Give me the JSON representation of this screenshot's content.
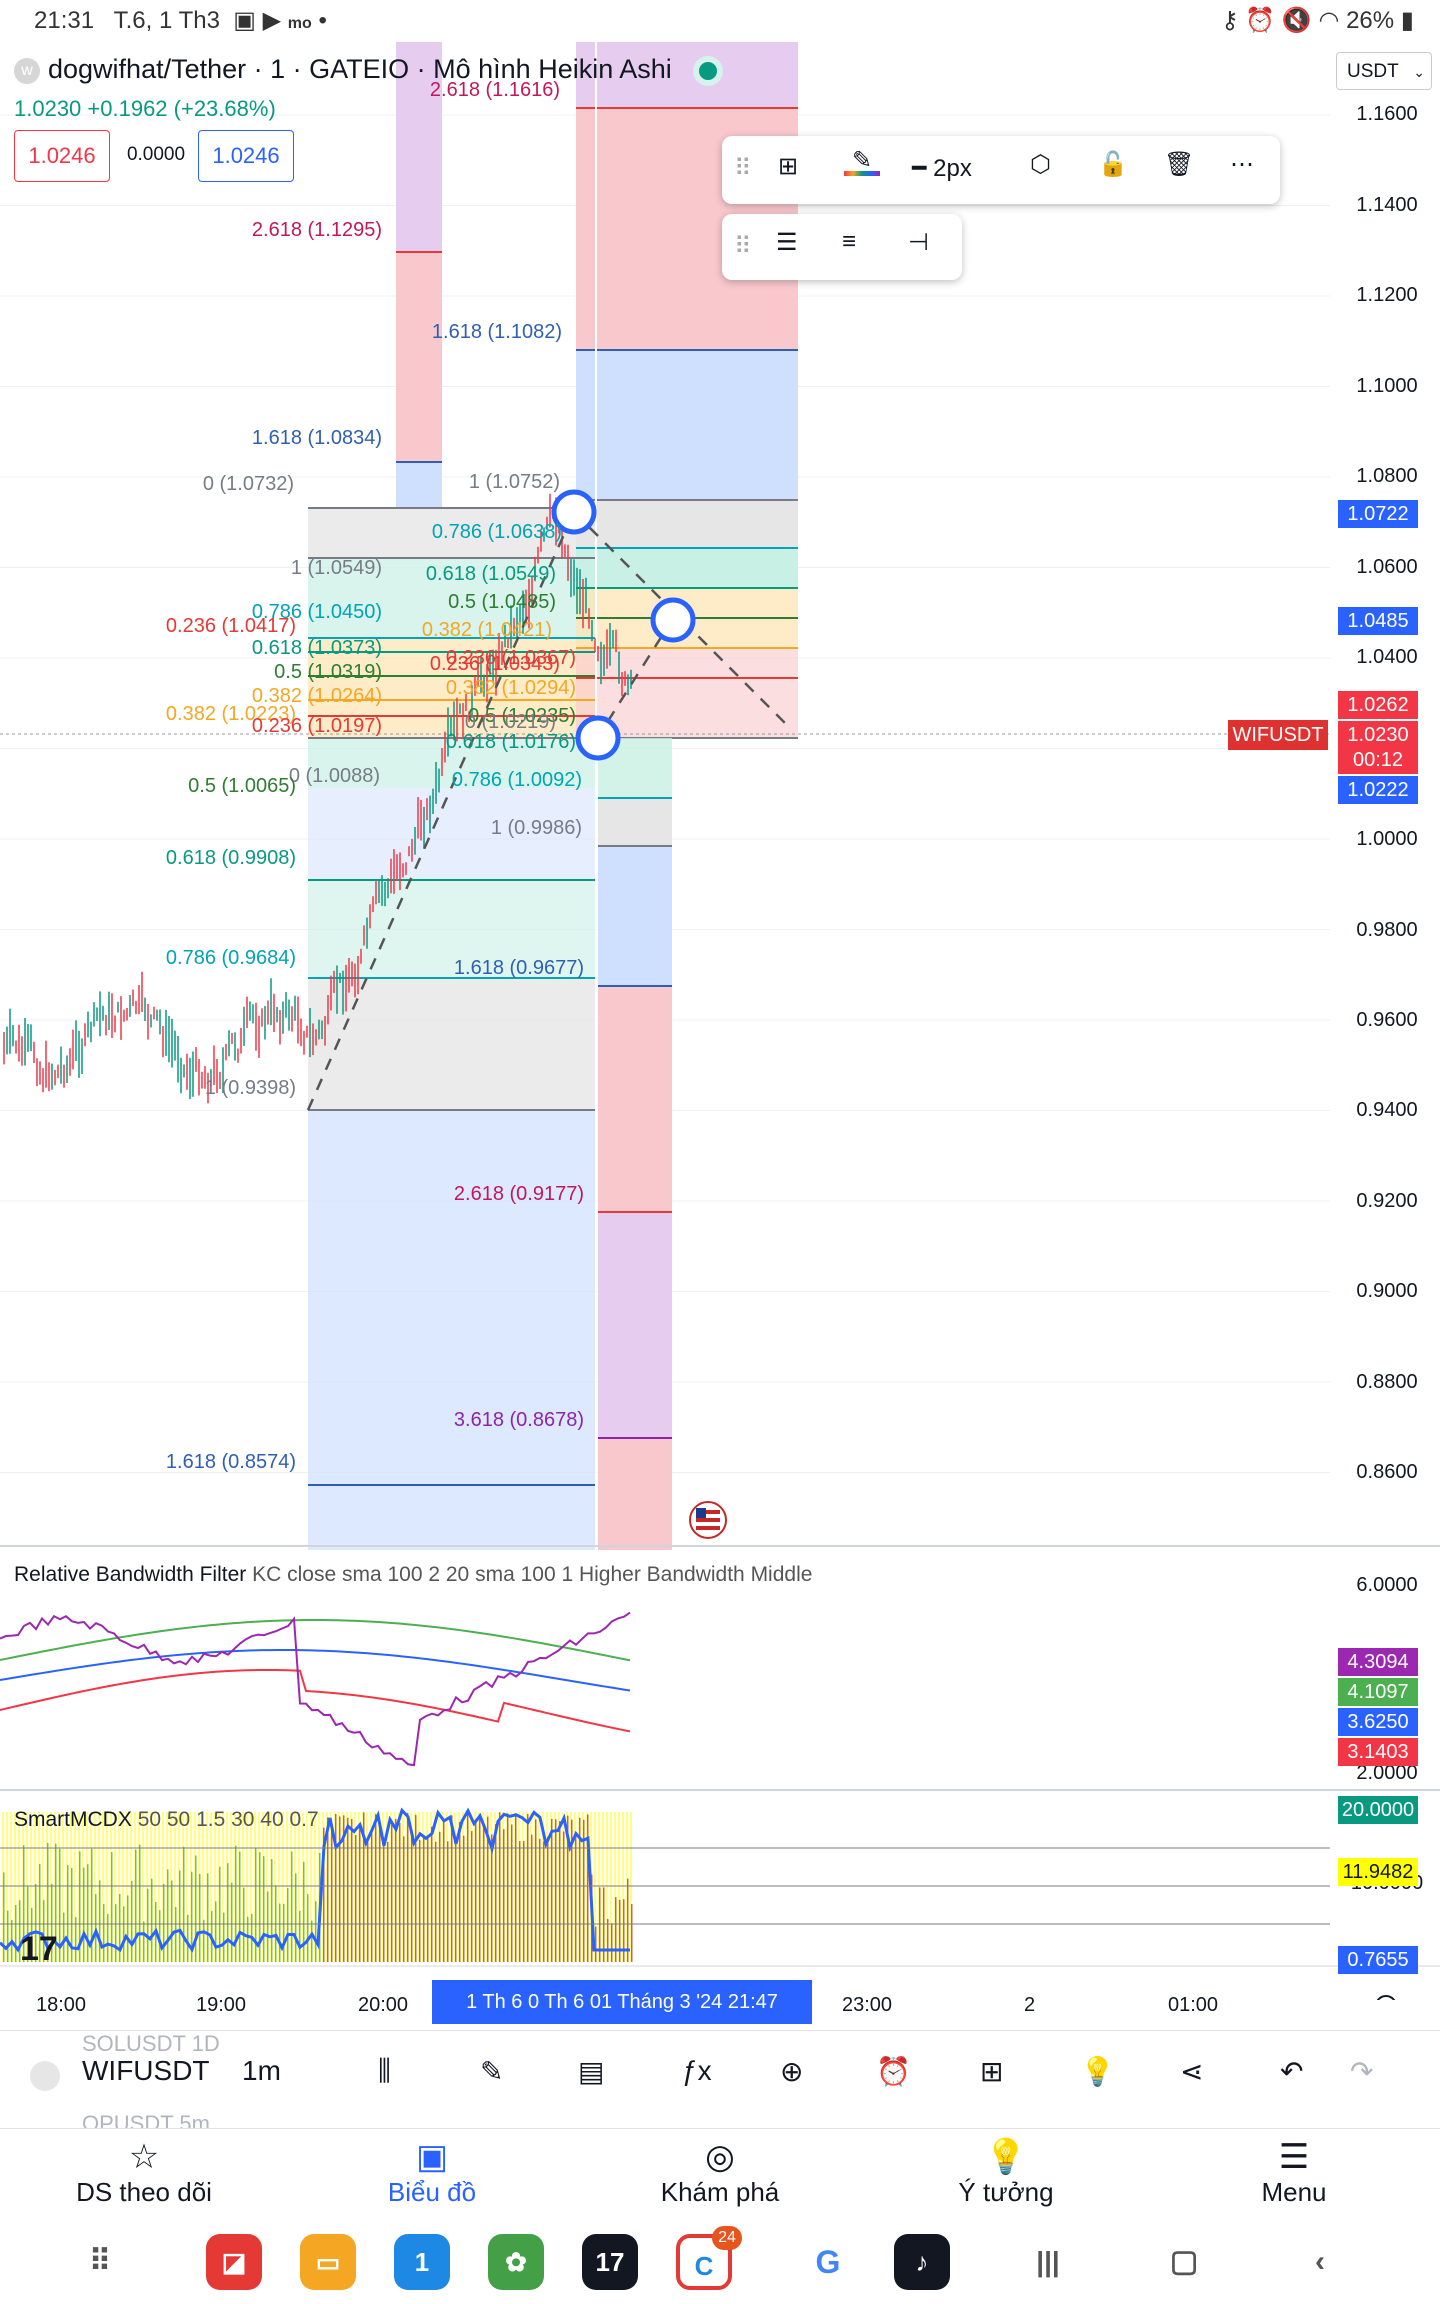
{
  "status_bar": {
    "time": "21:31",
    "date": "T.6, 1 Th3",
    "battery": "26%",
    "icons": [
      "gallery-icon",
      "video-icon",
      "momo-icon",
      "dot-icon",
      "key-icon",
      "alarm-icon",
      "mute-icon",
      "wifi-icon",
      "signal-icon",
      "battery-icon"
    ]
  },
  "header": {
    "symbol_title": "dogwifhat/Tether · 1 · GATEIO · Mô hình Heikin Ashi",
    "price_line": "1.0230 +0.1962 (+23.68%)",
    "bid": "1.0246",
    "spread": "0.0000",
    "ask": "1.0246",
    "currency": "USDT"
  },
  "drawing_toolbar": {
    "stroke_width": "2px",
    "icons": [
      "drag-handle-icon",
      "add-template-icon",
      "pencil-color-icon",
      "line-style-icon",
      "settings-hex-icon",
      "unlock-icon",
      "trash-icon",
      "more-icon"
    ]
  },
  "drawing_toolbar2": {
    "icons": [
      "drag-handle-icon",
      "fib-levels-icon",
      "fib-lines-icon",
      "fib-extension-icon"
    ]
  },
  "colors": {
    "up": "#089981",
    "down": "#f23645",
    "accent": "#2962ff",
    "fib_red": "#f8c8cc",
    "fib_blue": "#cfe0ff",
    "fib_purple": "#e6cdf0",
    "fib_gray": "#e6e6e6",
    "fib_green": "#c8f0e4"
  },
  "price_axis": {
    "ticks": [
      "1.1600",
      "1.1400",
      "1.1200",
      "1.1000",
      "1.0800",
      "1.0600",
      "1.0400",
      "1.0000",
      "0.9800",
      "0.9600",
      "0.9400",
      "0.9200",
      "0.9000",
      "0.8800",
      "0.8600"
    ],
    "badges": [
      {
        "text": "1.0722",
        "color": "#2962ff"
      },
      {
        "text": "1.0485",
        "color": "#2962ff"
      },
      {
        "text": "1.0262",
        "color": "#f23645"
      },
      {
        "text": "1.0230",
        "color": "#f23645"
      },
      {
        "text": "00:12",
        "color": "#f23645"
      },
      {
        "text": "1.0222",
        "color": "#2962ff"
      }
    ],
    "symbol_badge": "WIFUSDT"
  },
  "fib_labels": {
    "left": [
      {
        "text": "2.618 (1.1295)",
        "color": "#c2185b"
      },
      {
        "text": "1.618 (1.0834)",
        "color": "#2f5fb3"
      },
      {
        "text": "0 (1.0732)",
        "color": "#787b86"
      },
      {
        "text": "1 (1.0549)",
        "color": "#787b86"
      },
      {
        "text": "0.786 (1.0450)",
        "color": "#00a4b4"
      },
      {
        "text": "0.236 (1.0417)",
        "color": "#e53935"
      },
      {
        "text": "0.618 (1.0373)",
        "color": "#089981"
      },
      {
        "text": "0.5 (1.0319)",
        "color": "#2e7d32"
      },
      {
        "text": "0.382 (1.0264)",
        "color": "#f5a623"
      },
      {
        "text": "0.382 (1.0223)",
        "color": "#f5a623"
      },
      {
        "text": "0.236 (1.0197)",
        "color": "#e53935"
      },
      {
        "text": "0 (1.0088)",
        "color": "#787b86"
      },
      {
        "text": "0.5 (1.0065)",
        "color": "#2e7d32"
      },
      {
        "text": "0.618 (0.9908)",
        "color": "#089981"
      },
      {
        "text": "0.786 (0.9684)",
        "color": "#00a4b4"
      },
      {
        "text": "1 (0.9398)",
        "color": "#787b86"
      },
      {
        "text": "1.618 (0.8574)",
        "color": "#2f5fb3"
      }
    ],
    "mid": [
      {
        "text": "2.618 (1.1616)",
        "color": "#c2185b"
      },
      {
        "text": "1.618 (1.1082)",
        "color": "#2f5fb3"
      },
      {
        "text": "1 (1.0752)",
        "color": "#787b86"
      },
      {
        "text": "0.786 (1.0638)",
        "color": "#00a4b4"
      },
      {
        "text": "0.618 (1.0549)",
        "color": "#089981"
      },
      {
        "text": "0.5 (1.0485)",
        "color": "#2e7d32"
      },
      {
        "text": "0.382 (1.0421)",
        "color": "#f5a623"
      },
      {
        "text": "0.236 (1.0343)",
        "color": "#e53935"
      },
      {
        "text": "0.236 (1.0367)",
        "color": "#e53935"
      },
      {
        "text": "0.382 (1.0294)",
        "color": "#f5a623"
      },
      {
        "text": "0.5 (1.0235)",
        "color": "#2e7d32"
      },
      {
        "text": "0 (1.0219)",
        "color": "#787b86"
      },
      {
        "text": "0.618 (1.0176)",
        "color": "#089981"
      },
      {
        "text": "0.786 (1.0092)",
        "color": "#00a4b4"
      },
      {
        "text": "1 (0.9986)",
        "color": "#787b86"
      },
      {
        "text": "1.618 (0.9677)",
        "color": "#2f5fb3"
      },
      {
        "text": "2.618 (0.9177)",
        "color": "#c2185b"
      },
      {
        "text": "3.618 (0.8678)",
        "color": "#8e24aa"
      }
    ]
  },
  "indicator1": {
    "name": "Relative Bandwidth Filter",
    "params": "KC close sma 100 2 20 sma 100 1 Higher Bandwidth Middle",
    "axis_top": "6.0000",
    "axis_bottom": "2.0000",
    "badges": [
      {
        "text": "4.3094",
        "color": "#9c27b0"
      },
      {
        "text": "4.1097",
        "color": "#4caf50"
      },
      {
        "text": "3.6250",
        "color": "#2962ff"
      },
      {
        "text": "3.1403",
        "color": "#f23645"
      }
    ]
  },
  "indicator2": {
    "name": "SmartMCDX",
    "params": "50 50 1.5 30 40 0.7",
    "axis_mid": "10.0000",
    "badges": [
      {
        "text": "20.0000",
        "color": "#089981"
      },
      {
        "text": "11.9482",
        "color": "#ffff00"
      },
      {
        "text": "0.7655",
        "color": "#2962ff"
      }
    ]
  },
  "time_axis": {
    "ticks": [
      "18:00",
      "19:00",
      "20:00",
      "23:00",
      "2",
      "01:00"
    ],
    "highlight": "1  Th 6 0   Th 6 01 Tháng 3 '24   21:47"
  },
  "bottom_toolbar": {
    "symbol": "WIFUSDT",
    "interval": "1m",
    "ghost_above": "SOLUSDT   1D",
    "ghost_below": "OPUSDT    5m",
    "icons": [
      "candle-type-icon",
      "draw-icon",
      "indicators-icon",
      "fx-icon",
      "add-icon",
      "alert-icon",
      "layout-icon",
      "idea-icon",
      "share-icon",
      "undo-icon",
      "redo-icon"
    ]
  },
  "nav": [
    {
      "label": "DS theo dõi",
      "icon": "star-icon"
    },
    {
      "label": "Biểu đồ",
      "icon": "chart-icon"
    },
    {
      "label": "Khám phá",
      "icon": "compass-icon"
    },
    {
      "label": "Ý tưởng",
      "icon": "bulb-icon"
    },
    {
      "label": "Menu",
      "icon": "menu-icon"
    }
  ],
  "dock": {
    "badge_count": "24",
    "apps": [
      "app-drawer-icon",
      "notes-app-icon",
      "files-app-icon",
      "calendar-app-icon",
      "photos-app-icon",
      "tradingview-app-icon",
      "chrome-app-icon",
      "google-app-icon",
      "tiktok-app-icon",
      "recents-icon",
      "home-icon",
      "back-icon"
    ]
  }
}
